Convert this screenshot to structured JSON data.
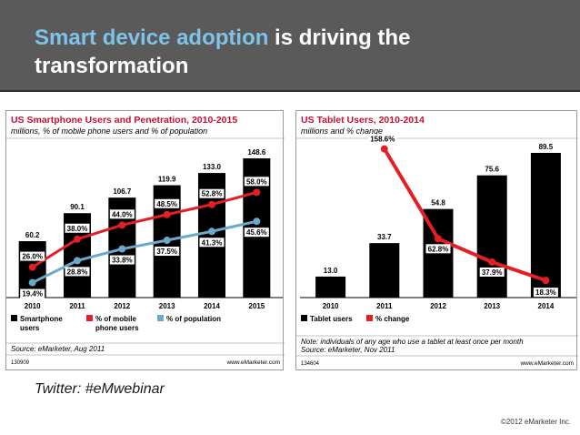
{
  "slide": {
    "title_accent": "Smart device adoption",
    "title_rest": " is driving the transformation",
    "twitter": "Twitter: #eMwebinar",
    "copyright": "©2012 eMarketer Inc."
  },
  "colors": {
    "header_bg": "#5a5a5a",
    "accent": "#7ec3e8",
    "chart_title_red": "#c8102e",
    "bar_black": "#000000",
    "line_red": "#e31e24",
    "line_blue": "#6aa9c9"
  },
  "chart_data": [
    {
      "type": "bar",
      "title": "US Smartphone Users and Penetration, 2010-2015",
      "subtitle": "millions, % of mobile phone users and % of population",
      "categories": [
        "2010",
        "2011",
        "2012",
        "2013",
        "2014",
        "2015"
      ],
      "series": [
        {
          "name": "Smartphone users",
          "kind": "bar",
          "values": [
            60.2,
            90.1,
            106.7,
            119.9,
            133.0,
            148.6
          ],
          "labels": [
            "60.2",
            "90.1",
            "106.7",
            "119.9",
            "133.0",
            "148.6"
          ]
        },
        {
          "name": "% of mobile phone users",
          "kind": "line",
          "values": [
            26.0,
            38.0,
            44.0,
            48.5,
            52.8,
            58.0
          ],
          "labels": [
            "26.0%",
            "38.0%",
            "44.0%",
            "48.5%",
            "52.8%",
            "58.0%"
          ]
        },
        {
          "name": "% of population",
          "kind": "line",
          "values": [
            19.4,
            28.8,
            33.8,
            37.5,
            41.3,
            45.6
          ],
          "labels": [
            "19.4%",
            "28.8%",
            "33.8%",
            "37.5%",
            "41.3%",
            "45.6%"
          ]
        }
      ],
      "source": "Source: eMarketer, Aug 2011",
      "note": "",
      "id": "130909",
      "site": "www.eMarketer.com"
    },
    {
      "type": "bar",
      "title": "US Tablet Users, 2010-2014",
      "subtitle": "millions and % change",
      "categories": [
        "2010",
        "2011",
        "2012",
        "2013",
        "2014"
      ],
      "series": [
        {
          "name": "Tablet users",
          "kind": "bar",
          "values": [
            13.0,
            33.7,
            54.8,
            75.6,
            89.5
          ],
          "labels": [
            "13.0",
            "33.7",
            "54.8",
            "75.6",
            "89.5"
          ]
        },
        {
          "name": "% change",
          "kind": "line",
          "values": [
            null,
            158.6,
            62.8,
            37.9,
            18.3
          ],
          "labels": [
            "",
            "158.6%",
            "62.8%",
            "37.9%",
            "18.3%"
          ]
        }
      ],
      "source": "Source: eMarketer, Nov 2011",
      "note": "Note: individuals of any age who use a tablet at least once per month",
      "id": "134604",
      "site": "www.eMarketer.com"
    }
  ]
}
